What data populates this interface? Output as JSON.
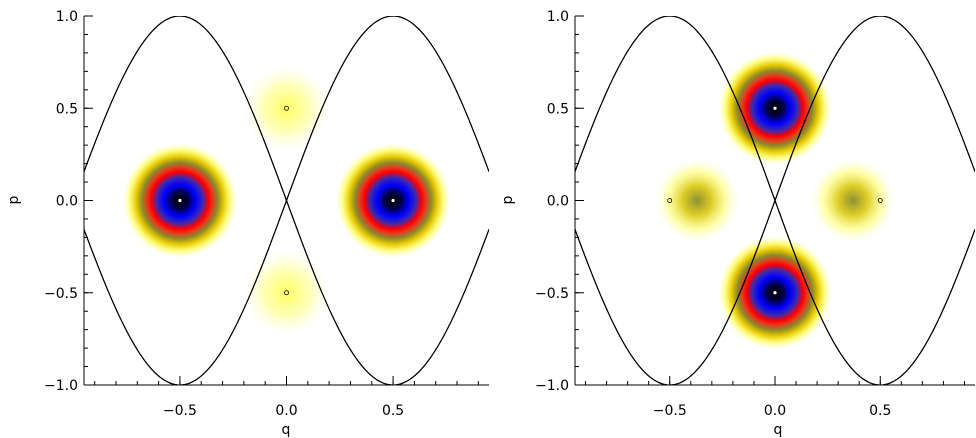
{
  "chart_data": [
    {
      "type": "heatmap",
      "title": "",
      "xlabel": "q",
      "ylabel": "p",
      "xlim": [
        -0.95,
        0.95
      ],
      "ylim": [
        -1.0,
        1.0
      ],
      "xticks": [
        -0.5,
        0.0,
        0.5
      ],
      "xtick_labels": [
        "−0.5",
        "0.0",
        "0.5"
      ],
      "yticks": [
        -1.0,
        -0.5,
        0.0,
        0.5,
        1.0
      ],
      "ytick_labels": [
        "−1.0",
        "−0.5",
        "0.0",
        "0.5",
        "1.0"
      ],
      "colorscale": [
        "#ffffff",
        "#ffff99",
        "#e6c800",
        "#8a8a2a",
        "#ff0000",
        "#0000ff",
        "#000000"
      ],
      "strong_peaks": [
        {
          "q": -0.5,
          "p": 0.0,
          "amplitude": 1.0
        },
        {
          "q": 0.5,
          "p": 0.0,
          "amplitude": 1.0
        }
      ],
      "weak_peaks": [
        {
          "q": 0.0,
          "p": 0.5,
          "amplitude": 0.2
        },
        {
          "q": 0.0,
          "p": -0.5,
          "amplitude": 0.2
        }
      ],
      "filled_markers": [
        {
          "q": -0.5,
          "p": 0.0
        },
        {
          "q": 0.5,
          "p": 0.0
        }
      ],
      "open_markers": [
        {
          "q": 0.0,
          "p": 0.5
        },
        {
          "q": 0.0,
          "p": -0.5
        }
      ],
      "sine_curves": [
        {
          "phase": 0.5,
          "sign": 1
        },
        {
          "phase": 0.5,
          "sign": -1
        },
        {
          "phase": -0.5,
          "sign": 1
        },
        {
          "phase": -0.5,
          "sign": -1
        }
      ]
    },
    {
      "type": "heatmap",
      "title": "",
      "xlabel": "q",
      "ylabel": "p",
      "xlim": [
        -0.95,
        0.95
      ],
      "ylim": [
        -1.0,
        1.0
      ],
      "xticks": [
        -0.5,
        0.0,
        0.5
      ],
      "xtick_labels": [
        "−0.5",
        "0.0",
        "0.5"
      ],
      "yticks": [
        -1.0,
        -0.5,
        0.0,
        0.5,
        1.0
      ],
      "ytick_labels": [
        "−1.0",
        "−0.5",
        "0.0",
        "0.5",
        "1.0"
      ],
      "colorscale": [
        "#ffffff",
        "#ffff99",
        "#e6c800",
        "#8a8a2a",
        "#ff0000",
        "#0000ff",
        "#000000"
      ],
      "strong_peaks": [
        {
          "q": 0.0,
          "p": 0.5,
          "amplitude": 1.0
        },
        {
          "q": 0.0,
          "p": -0.5,
          "amplitude": 1.0
        }
      ],
      "weak_peaks": [
        {
          "q": -0.37,
          "p": 0.0,
          "amplitude": 0.3
        },
        {
          "q": 0.37,
          "p": 0.0,
          "amplitude": 0.3
        }
      ],
      "filled_markers": [
        {
          "q": 0.0,
          "p": 0.5
        },
        {
          "q": 0.0,
          "p": -0.5
        }
      ],
      "open_markers": [
        {
          "q": -0.5,
          "p": 0.0
        },
        {
          "q": 0.5,
          "p": 0.0
        }
      ],
      "sine_curves": [
        {
          "phase": 0.5,
          "sign": 1
        },
        {
          "phase": 0.5,
          "sign": -1
        },
        {
          "phase": -0.5,
          "sign": 1
        },
        {
          "phase": -0.5,
          "sign": -1
        }
      ]
    }
  ]
}
